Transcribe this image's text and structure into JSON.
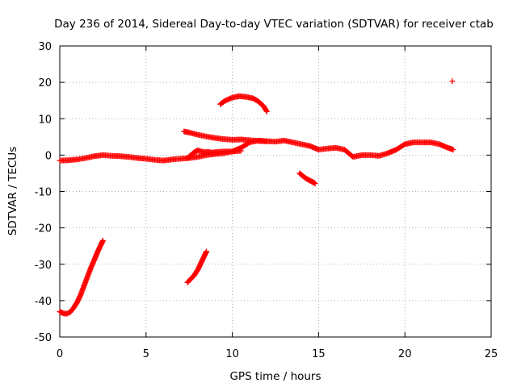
{
  "chart_data": {
    "type": "scatter",
    "title": "Day 236 of 2014, Sidereal Day-to-day VTEC variation (SDTVAR) for receiver ctab",
    "xlabel": "GPS time / hours",
    "ylabel": "SDTVAR / TECUs",
    "xlim": [
      0,
      25
    ],
    "ylim": [
      -50,
      30
    ],
    "xticks": [
      "0",
      "5",
      "10",
      "15",
      "20",
      "25"
    ],
    "yticks": [
      "30",
      "20",
      "10",
      "0",
      "-10",
      "-20",
      "-30",
      "-40",
      "-50"
    ],
    "grid": true,
    "marker": "+",
    "color": "#ff0000",
    "series": [
      {
        "name": "main-trace-a",
        "x": [
          0.0,
          0.5,
          1.0,
          1.5,
          2.0,
          2.5,
          3.0,
          3.5,
          4.0,
          4.5,
          5.0,
          5.5,
          6.0,
          6.5,
          7.0,
          7.5,
          8.0,
          8.5,
          9.0,
          9.5,
          10.0,
          10.5,
          11.0,
          11.5,
          12.0,
          12.5,
          13.0,
          13.5,
          14.0,
          14.5,
          15.0,
          15.5,
          16.0,
          16.5,
          17.0,
          17.5,
          18.0,
          18.5,
          19.0,
          19.5,
          20.0,
          20.5,
          21.0,
          21.5,
          22.0,
          22.5,
          22.8
        ],
        "y": [
          -1.5,
          -1.4,
          -1.2,
          -0.8,
          -0.3,
          0.0,
          -0.2,
          -0.3,
          -0.5,
          -0.8,
          -1.0,
          -1.3,
          -1.5,
          -1.2,
          -1.0,
          -0.8,
          -0.5,
          0.0,
          0.3,
          0.5,
          1.0,
          2.0,
          3.5,
          4.0,
          3.8,
          3.7,
          4.0,
          3.5,
          3.0,
          2.5,
          1.5,
          1.8,
          2.0,
          1.5,
          -0.5,
          0.0,
          0.0,
          -0.2,
          0.5,
          1.5,
          3.0,
          3.5,
          3.5,
          3.5,
          3.0,
          2.0,
          1.5
        ]
      },
      {
        "name": "main-trace-b",
        "x": [
          7.2,
          7.5,
          8.0,
          8.5,
          9.0,
          9.5,
          10.0,
          10.5,
          11.0,
          11.5,
          12.0
        ],
        "y": [
          6.5,
          6.2,
          5.6,
          5.1,
          4.7,
          4.4,
          4.2,
          4.3,
          4.1,
          3.9,
          3.8
        ]
      },
      {
        "name": "bump-trace",
        "x": [
          7.4,
          7.6,
          7.8,
          8.0,
          8.2,
          8.4,
          8.6,
          8.8,
          9.0,
          9.5,
          10.0,
          10.5
        ],
        "y": [
          -0.8,
          0.0,
          0.8,
          1.3,
          1.0,
          0.8,
          0.9,
          0.7,
          0.8,
          1.0,
          1.0,
          1.2
        ]
      },
      {
        "name": "arc-trace",
        "x": [
          9.3,
          9.6,
          10.0,
          10.4,
          10.8,
          11.2,
          11.5,
          11.8,
          12.0
        ],
        "y": [
          14.0,
          15.0,
          15.8,
          16.2,
          16.0,
          15.6,
          14.8,
          13.5,
          12.0
        ]
      },
      {
        "name": "dip-trace",
        "x": [
          13.9,
          14.1,
          14.3,
          14.5,
          14.7,
          14.8
        ],
        "y": [
          -5.0,
          -5.8,
          -6.5,
          -7.0,
          -7.5,
          -7.8
        ]
      },
      {
        "name": "rise-trace-start",
        "x": [
          0.0,
          0.2,
          0.4,
          0.6,
          0.8,
          1.0,
          1.2,
          1.4,
          1.6,
          1.8,
          2.0,
          2.2,
          2.4,
          2.5
        ],
        "y": [
          -43.0,
          -43.5,
          -43.6,
          -43.2,
          -42.0,
          -40.5,
          -38.5,
          -36.0,
          -33.5,
          -31.0,
          -28.8,
          -26.5,
          -24.5,
          -23.5
        ]
      },
      {
        "name": "rise-trace-mid",
        "x": [
          7.4,
          7.6,
          7.8,
          8.0,
          8.2,
          8.4,
          8.5
        ],
        "y": [
          -35.0,
          -34.0,
          -33.0,
          -31.5,
          -29.5,
          -27.5,
          -26.5
        ]
      },
      {
        "name": "outlier",
        "x": [
          22.75
        ],
        "y": [
          20.3
        ]
      }
    ]
  }
}
